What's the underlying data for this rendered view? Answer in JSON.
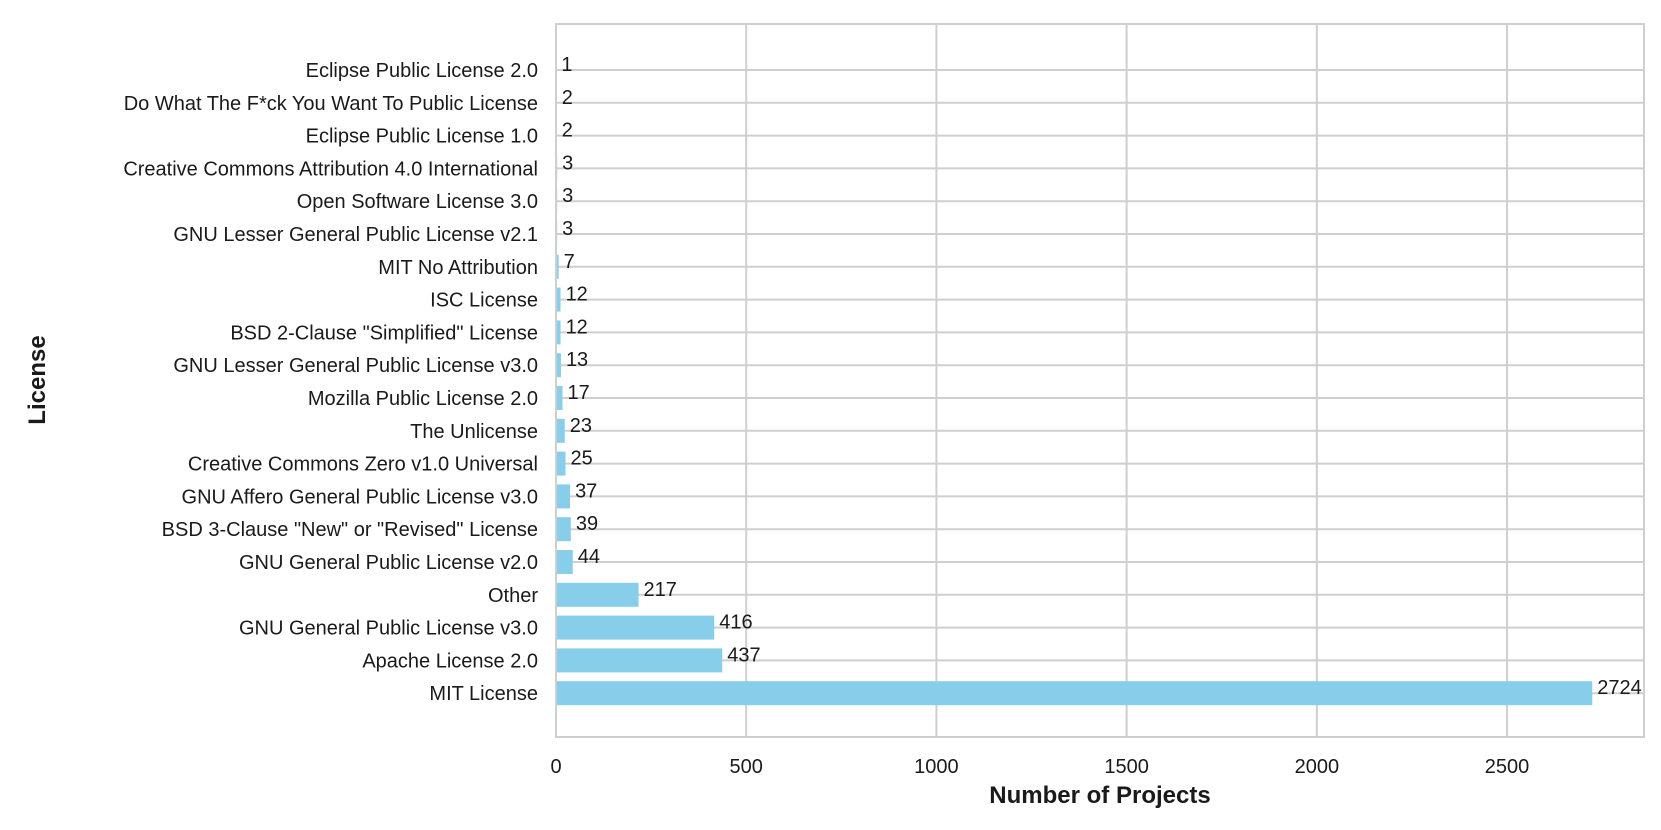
{
  "chart_data": {
    "type": "bar",
    "orientation": "horizontal",
    "xlabel": "Number of Projects",
    "ylabel": "License",
    "xlim": [
      0,
      2860
    ],
    "xticks": [
      0,
      500,
      1000,
      1500,
      2000,
      2500
    ],
    "xtick_labels": [
      "0",
      "500",
      "1000",
      "1500",
      "2000",
      "2500"
    ],
    "grid": true,
    "bar_color": "#87ceeb",
    "categories": [
      "Eclipse Public License 2.0",
      "Do What The F*ck You Want To Public License",
      "Eclipse Public License 1.0",
      "Creative Commons Attribution 4.0 International",
      "Open Software License 3.0",
      "GNU Lesser General Public License v2.1",
      "MIT No Attribution",
      "ISC License",
      "BSD 2-Clause \"Simplified\" License",
      "GNU Lesser General Public License v3.0",
      "Mozilla Public License 2.0",
      "The Unlicense",
      "Creative Commons Zero v1.0 Universal",
      "GNU Affero General Public License v3.0",
      "BSD 3-Clause \"New\" or \"Revised\" License",
      "GNU General Public License v2.0",
      "Other",
      "GNU General Public License v3.0",
      "Apache License 2.0",
      "MIT License"
    ],
    "values": [
      1,
      2,
      2,
      3,
      3,
      3,
      7,
      12,
      12,
      13,
      17,
      23,
      25,
      37,
      39,
      44,
      217,
      416,
      437,
      2724
    ],
    "data_labels": [
      "1",
      "2",
      "2",
      "3",
      "3",
      "3",
      "7",
      "12",
      "12",
      "13",
      "17",
      "23",
      "25",
      "37",
      "39",
      "44",
      "217",
      "416",
      "437",
      "2724"
    ]
  }
}
